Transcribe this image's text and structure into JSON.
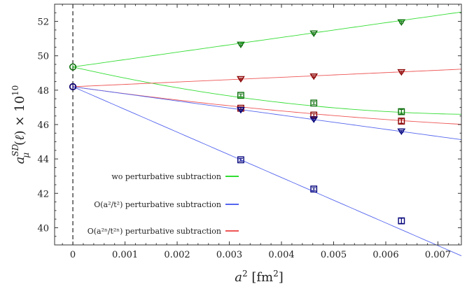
{
  "chart_data": {
    "type": "scatter",
    "xlabel": "a² [fm²]",
    "ylabel": "a_μ^SD(ℓ) × 10^10",
    "xlim": [
      -0.00035,
      0.00745
    ],
    "ylim": [
      39.0,
      53.0
    ],
    "xticks": [
      0,
      0.001,
      0.002,
      0.003,
      0.004,
      0.005,
      0.006,
      0.007
    ],
    "xtick_labels": [
      "0",
      "0.001",
      "0.002",
      "0.003",
      "0.004",
      "0.005",
      "0.006",
      "0.007"
    ],
    "yticks": [
      40,
      42,
      44,
      46,
      48,
      50,
      52
    ],
    "ytick_labels": [
      "40",
      "42",
      "44",
      "46",
      "48",
      "50",
      "52"
    ],
    "continuum_line_x": 0,
    "legend_position": "bottom-left",
    "colors": {
      "green": "#33dd33",
      "blue": "#5566ee",
      "red": "#ee5555",
      "dkgreen": "#0a6e0a",
      "dkblue": "#00007a",
      "dkred": "#8a0000"
    },
    "legend": [
      {
        "label": "wo perturbative subtraction",
        "color": "green"
      },
      {
        "label": "O(a²/t²) perturbative subtraction",
        "color": "blue"
      },
      {
        "label": "O(a²ⁿ/t²ⁿ) perturbative subtraction",
        "color": "red"
      }
    ],
    "series": [
      {
        "color": "green",
        "marker": "triangle-down",
        "x": [
          0.00322,
          0.00462,
          0.0063
        ],
        "y": [
          50.65,
          51.3,
          51.95
        ],
        "err": [
          0.05,
          0.05,
          0.05
        ],
        "fit": [
          49.35,
          429.0,
          0
        ]
      },
      {
        "color": "green",
        "marker": "square",
        "x": [
          0.00322,
          0.00462,
          0.0063
        ],
        "y": [
          47.7,
          47.25,
          46.75
        ],
        "err": [
          0.08,
          0.08,
          0.12
        ],
        "fit": [
          49.35,
          -690.0,
          43000.0
        ]
      },
      {
        "color": "red",
        "marker": "triangle-down",
        "x": [
          0.00322,
          0.00462,
          0.0063
        ],
        "y": [
          48.65,
          48.8,
          49.05
        ],
        "err": [
          0.05,
          0.05,
          0.05
        ],
        "fit": [
          48.2,
          137.0,
          0
        ]
      },
      {
        "color": "red",
        "marker": "square",
        "x": [
          0.00322,
          0.00462,
          0.0063
        ],
        "y": [
          46.95,
          46.55,
          46.2
        ],
        "err": [
          0.08,
          0.08,
          0.12
        ],
        "fit": [
          48.2,
          -420.0,
          17000.0
        ]
      },
      {
        "color": "blue",
        "marker": "triangle-down",
        "x": [
          0.00322,
          0.00462,
          0.0063
        ],
        "y": [
          46.85,
          46.3,
          45.6
        ],
        "err": [
          0.05,
          0.05,
          0.05
        ],
        "fit": [
          48.2,
          -413.0,
          0
        ]
      },
      {
        "color": "blue",
        "marker": "square",
        "x": [
          0.00322,
          0.00462,
          0.0063
        ],
        "y": [
          43.95,
          42.25,
          40.4
        ],
        "err": [
          0.08,
          0.08,
          0.15
        ],
        "fit": [
          48.2,
          -1320.0,
          0
        ]
      }
    ],
    "continuum": [
      {
        "color": "green",
        "x": 0,
        "y": 49.35
      },
      {
        "color": "red",
        "x": 0,
        "y": 48.2
      },
      {
        "color": "blue",
        "x": 0,
        "y": 48.2
      }
    ]
  }
}
